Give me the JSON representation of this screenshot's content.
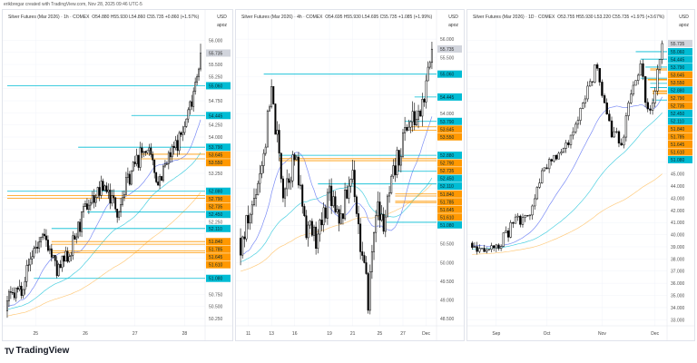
{
  "credit": "erikbregar created with TradingView.com, Nov 28, 2025 09:46 UTC-5",
  "brand": "TradingView",
  "colors": {
    "cyan": "#00bcd4",
    "orange": "#ff9800",
    "up": "#ffffff",
    "down": "#000000",
    "ma_blue": "#7b8cf5",
    "ma_teal": "#4dd0e1",
    "ma_orange": "#ffcc80",
    "current": "#d1d4dc"
  },
  "chart_data": [
    {
      "type": "candlestick",
      "title": "Silver Futures (Mar 2026) · 1h · COMEX",
      "ohlc": "O54.880 H55.930 L54.860 C55.735 +0.860 (+1.57%)",
      "currency": "USD",
      "unit": "apoz",
      "current": "55.735",
      "ylim": [
        50.1,
        56.1
      ],
      "tick_step": 0.25,
      "bars": 110,
      "seed": 7,
      "noise": 0.18,
      "anchors": [
        [
          0,
          50.6
        ],
        [
          8,
          50.9
        ],
        [
          15,
          51.7
        ],
        [
          22,
          51.9
        ],
        [
          28,
          51.2
        ],
        [
          35,
          51.6
        ],
        [
          45,
          52.6
        ],
        [
          55,
          53.0
        ],
        [
          62,
          52.5
        ],
        [
          70,
          53.3
        ],
        [
          78,
          53.8
        ],
        [
          85,
          53.1
        ],
        [
          92,
          53.6
        ],
        [
          100,
          54.2
        ],
        [
          104,
          54.8
        ],
        [
          109,
          55.73
        ]
      ],
      "xticks": [
        {
          "label": "25",
          "bar": 16
        },
        {
          "label": "26",
          "bar": 44
        },
        {
          "label": "27",
          "bar": 72
        },
        {
          "label": "28",
          "bar": 100
        }
      ],
      "levels": [
        {
          "p": "55.060",
          "c": "cyan",
          "from": 0
        },
        {
          "p": "54.445",
          "c": "cyan",
          "from": 70
        },
        {
          "p": "53.790",
          "c": "cyan",
          "from": 40
        },
        {
          "p": "53.645",
          "c": "orange",
          "from": 75
        },
        {
          "p": "53.550",
          "c": "orange",
          "from": 75
        },
        {
          "p": "52.880",
          "c": "cyan",
          "from": 0
        },
        {
          "p": "52.790",
          "c": "orange",
          "from": 0
        },
        {
          "p": "52.735",
          "c": "orange",
          "from": 0
        },
        {
          "p": "52.450",
          "c": "cyan",
          "from": 45
        },
        {
          "p": "52.110",
          "c": "cyan",
          "from": 25
        },
        {
          "p": "51.840",
          "c": "orange",
          "from": 25
        },
        {
          "p": "51.785",
          "c": "orange",
          "from": 25
        },
        {
          "p": "51.645",
          "c": "orange",
          "from": 25
        },
        {
          "p": "51.610",
          "c": "orange",
          "from": 25
        },
        {
          "p": "51.080",
          "c": "cyan",
          "from": 15
        }
      ]
    },
    {
      "type": "candlestick",
      "title": "Silver Futures (Mar 2026) · 4h · COMEX",
      "ohlc": "O54.695 H55.930 L54.695 C55.735 +1.085 (+1.99%)",
      "currency": "USD",
      "unit": "apoz",
      "current": "55.735",
      "ylim": [
        48.3,
        56.1
      ],
      "tick_step": 0.5,
      "bars": 100,
      "seed": 11,
      "noise": 0.35,
      "anchors": [
        [
          0,
          50.4
        ],
        [
          6,
          51.5
        ],
        [
          12,
          53.0
        ],
        [
          16,
          54.5
        ],
        [
          22,
          52.0
        ],
        [
          28,
          52.8
        ],
        [
          34,
          51.0
        ],
        [
          40,
          50.6
        ],
        [
          46,
          52.0
        ],
        [
          52,
          51.2
        ],
        [
          58,
          52.5
        ],
        [
          62,
          50.5
        ],
        [
          66,
          49.0
        ],
        [
          70,
          51.5
        ],
        [
          74,
          51.0
        ],
        [
          80,
          52.5
        ],
        [
          86,
          53.7
        ],
        [
          92,
          53.9
        ],
        [
          96,
          54.6
        ],
        [
          99,
          55.73
        ]
      ],
      "xticks": [
        {
          "label": "11",
          "bar": 4
        },
        {
          "label": "13",
          "bar": 16
        },
        {
          "label": "16",
          "bar": 28
        },
        {
          "label": "19",
          "bar": 46
        },
        {
          "label": "21",
          "bar": 58
        },
        {
          "label": "25",
          "bar": 72
        },
        {
          "label": "27",
          "bar": 84
        },
        {
          "label": "Dec",
          "bar": 96
        }
      ],
      "levels": [
        {
          "p": "55.060",
          "c": "cyan",
          "from": 12
        },
        {
          "p": "54.445",
          "c": "cyan",
          "from": 90
        },
        {
          "p": "53.790",
          "c": "cyan",
          "from": 85
        },
        {
          "p": "53.645",
          "c": "orange",
          "from": 88
        },
        {
          "p": "53.550",
          "c": "orange",
          "from": 88
        },
        {
          "p": "52.880",
          "c": "cyan",
          "from": 20
        },
        {
          "p": "52.790",
          "c": "orange",
          "from": 20
        },
        {
          "p": "52.735",
          "c": "orange",
          "from": 20
        },
        {
          "p": "52.450",
          "c": "cyan",
          "from": 80
        },
        {
          "p": "52.110",
          "c": "cyan",
          "from": 40
        },
        {
          "p": "51.840",
          "c": "orange",
          "from": 80
        },
        {
          "p": "51.785",
          "c": "orange",
          "from": 80
        },
        {
          "p": "51.645",
          "c": "orange",
          "from": 80
        },
        {
          "p": "51.610",
          "c": "orange",
          "from": 80
        },
        {
          "p": "51.080",
          "c": "cyan",
          "from": 75
        }
      ]
    },
    {
      "type": "candlestick",
      "title": "Silver Futures (Mar 2026) · 1D · COMEX",
      "ohlc": "O53.755 H55.930 L53.220 C55.735 +1.975 (+3.67%)",
      "currency": "USD",
      "unit": "apoz",
      "current": "55.735",
      "ylim": [
        32.5,
        56.4
      ],
      "tick_step": 1,
      "bars": 80,
      "seed": 23,
      "noise": 0.5,
      "anchors": [
        [
          0,
          39.2
        ],
        [
          6,
          38.6
        ],
        [
          12,
          39.5
        ],
        [
          18,
          41.0
        ],
        [
          24,
          42.0
        ],
        [
          30,
          45.5
        ],
        [
          36,
          46.5
        ],
        [
          42,
          48.5
        ],
        [
          48,
          52.0
        ],
        [
          52,
          54.0
        ],
        [
          55,
          50.5
        ],
        [
          58,
          48.5
        ],
        [
          62,
          47.5
        ],
        [
          66,
          51.5
        ],
        [
          70,
          54.0
        ],
        [
          73,
          50.0
        ],
        [
          76,
          52.0
        ],
        [
          79,
          55.73
        ]
      ],
      "xticks": [
        {
          "label": "Sep",
          "bar": 10
        },
        {
          "label": "Oct",
          "bar": 31
        },
        {
          "label": "Nov",
          "bar": 54
        },
        {
          "label": "Dec",
          "bar": 76
        }
      ],
      "levels": [
        {
          "p": "55.060",
          "c": "cyan",
          "from": 68
        },
        {
          "p": "54.445",
          "c": "cyan",
          "from": 70
        },
        {
          "p": "53.790",
          "c": "cyan",
          "from": 72
        },
        {
          "p": "53.645",
          "c": "orange",
          "from": 74
        },
        {
          "p": "53.550",
          "c": "orange",
          "from": 74
        },
        {
          "p": "52.880",
          "c": "cyan",
          "from": 70
        },
        {
          "p": "52.790",
          "c": "orange",
          "from": 73
        },
        {
          "p": "52.735",
          "c": "orange",
          "from": 73
        },
        {
          "p": "52.450",
          "c": "cyan",
          "from": 74
        },
        {
          "p": "52.110",
          "c": "cyan",
          "from": 74
        },
        {
          "p": "51.840",
          "c": "orange",
          "from": 75
        },
        {
          "p": "51.785",
          "c": "orange",
          "from": 75
        },
        {
          "p": "51.645",
          "c": "orange",
          "from": 75
        },
        {
          "p": "51.610",
          "c": "orange",
          "from": 75
        },
        {
          "p": "51.080",
          "c": "cyan",
          "from": 75
        }
      ]
    }
  ]
}
